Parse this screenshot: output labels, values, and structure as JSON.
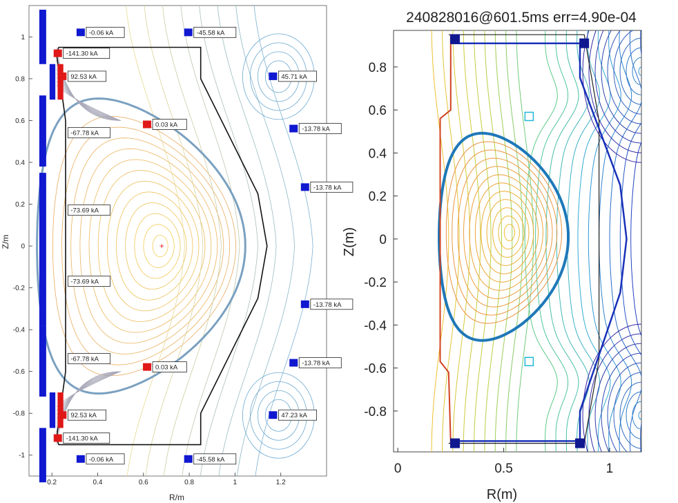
{
  "colors": {
    "pf_coil_blue": "#1018d0",
    "pf_coil_red": "#e01818",
    "wall_black": "#111111",
    "lcfs_left": "#7aa0c0",
    "lcfs_right": "#1e78b8",
    "contour_low": "#f0c030",
    "contour_high": "#2020a0",
    "magnetic_axis_marker": "#e02020"
  },
  "chart_data": [
    {
      "type": "contour",
      "xlabel": "R/m",
      "ylabel": "Z/m",
      "xlim": [
        0.1,
        1.4
      ],
      "ylim": [
        -1.1,
        1.15
      ],
      "x_ticks": [
        "0.2",
        "0.4",
        "0.6",
        "0.8",
        "1",
        "1.2"
      ],
      "x_tick_values": [
        0.2,
        0.4,
        0.6,
        0.8,
        1.0,
        1.2
      ],
      "y_ticks": [
        "1",
        "0.8",
        "0.6",
        "0.4",
        "0.2",
        "0",
        "-0.2",
        "-0.4",
        "-0.6",
        "-0.8",
        "-1"
      ],
      "y_tick_values": [
        1,
        0.8,
        0.6,
        0.4,
        0.2,
        0,
        -0.2,
        -0.4,
        -0.6,
        -0.8,
        -1
      ],
      "magnetic_axis": {
        "R": 0.68,
        "Z": 0.0
      },
      "coil_labels": [
        {
          "text": "-0.06 kA",
          "R": 0.35,
          "Z": 1.02,
          "coil_color": "blue"
        },
        {
          "text": "-45.58 kA",
          "R": 0.82,
          "Z": 1.02,
          "coil_color": "blue"
        },
        {
          "text": "-141.30 kA",
          "R": 0.25,
          "Z": 0.92,
          "coil_color": "red"
        },
        {
          "text": "92.53 kA",
          "R": 0.27,
          "Z": 0.81,
          "coil_color": "red"
        },
        {
          "text": "45.71 kA",
          "R": 1.19,
          "Z": 0.81,
          "coil_color": "blue"
        },
        {
          "text": "0.03 kA",
          "R": 0.64,
          "Z": 0.58,
          "coil_color": "red"
        },
        {
          "text": "-13.78 kA",
          "R": 1.28,
          "Z": 0.56,
          "coil_color": "blue"
        },
        {
          "text": "-67.78 kA",
          "R": 0.27,
          "Z": 0.54,
          "coil_color": "none"
        },
        {
          "text": "-13.78 kA",
          "R": 1.33,
          "Z": 0.28,
          "coil_color": "blue"
        },
        {
          "text": "-73.69 kA",
          "R": 0.27,
          "Z": 0.17,
          "coil_color": "none"
        },
        {
          "text": "-73.69 kA",
          "R": 0.27,
          "Z": -0.17,
          "coil_color": "none"
        },
        {
          "text": "-13.78 kA",
          "R": 1.33,
          "Z": -0.28,
          "coil_color": "blue"
        },
        {
          "text": "-67.78 kA",
          "R": 0.27,
          "Z": -0.54,
          "coil_color": "none"
        },
        {
          "text": "0.03 kA",
          "R": 0.64,
          "Z": -0.58,
          "coil_color": "red"
        },
        {
          "text": "-13.78 kA",
          "R": 1.28,
          "Z": -0.56,
          "coil_color": "blue"
        },
        {
          "text": "92.53 kA",
          "R": 0.27,
          "Z": -0.81,
          "coil_color": "red"
        },
        {
          "text": "47.23 kA",
          "R": 1.19,
          "Z": -0.81,
          "coil_color": "blue"
        },
        {
          "text": "-141.30 kA",
          "R": 0.25,
          "Z": -0.92,
          "coil_color": "red"
        },
        {
          "text": "-0.06 kA",
          "R": 0.35,
          "Z": -1.02,
          "coil_color": "blue"
        },
        {
          "text": "-45.58 kA",
          "R": 0.82,
          "Z": -1.02,
          "coil_color": "blue"
        }
      ]
    },
    {
      "type": "contour",
      "title": "240828016@601.5ms err=4.90e-04",
      "xlabel": "R(m)",
      "ylabel": "Z(m)",
      "xlim": [
        -0.02,
        1.15
      ],
      "ylim": [
        -0.99,
        0.97
      ],
      "x_ticks": [
        "0",
        "0.5",
        "1"
      ],
      "x_tick_values": [
        0,
        0.5,
        1
      ],
      "y_ticks": [
        "0.8",
        "0.6",
        "0.4",
        "0.2",
        "0",
        "-0.2",
        "-0.4",
        "-0.6",
        "-0.8"
      ],
      "y_tick_values": [
        0.8,
        0.6,
        0.4,
        0.2,
        0,
        -0.2,
        -0.4,
        -0.6,
        -0.8
      ],
      "magnetic_axis": {
        "R": 0.53,
        "Z": 0.03
      }
    }
  ]
}
